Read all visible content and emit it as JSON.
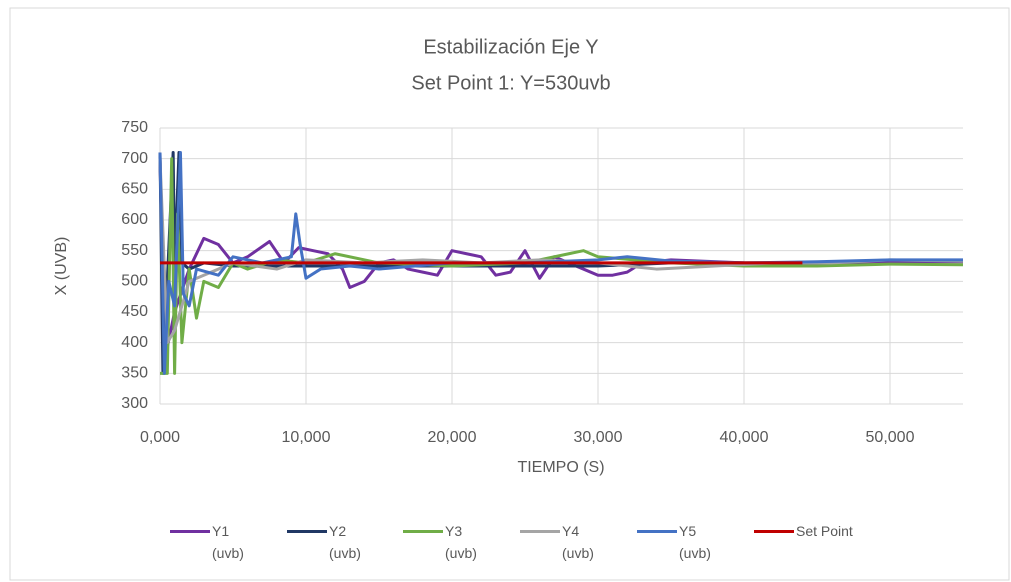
{
  "chart_data": {
    "type": "line",
    "title": "Estabilización Eje Y",
    "subtitle": "Set Point 1: Y=530uvb",
    "x_label": "TIEMPO (S)",
    "y_label": "X (UVB)",
    "xlim": [
      0,
      55
    ],
    "ylim": [
      300,
      750
    ],
    "xticks": [
      {
        "value": 0,
        "label": "0,000"
      },
      {
        "value": 10,
        "label": "10,000"
      },
      {
        "value": 20,
        "label": "20,000"
      },
      {
        "value": 30,
        "label": "30,000"
      },
      {
        "value": 40,
        "label": "40,000"
      },
      {
        "value": 50,
        "label": "50,000"
      }
    ],
    "yticks": [
      300,
      350,
      400,
      450,
      500,
      550,
      600,
      650,
      700,
      750
    ],
    "grid": true,
    "legend": "bottom",
    "series": [
      {
        "name": "Y1 (uvb)",
        "color": "#7030a0",
        "x": [
          0,
          0.3,
          1,
          2,
          3,
          4,
          5,
          6,
          7.5,
          8.5,
          9.5,
          10.5,
          11.5,
          12.5,
          13,
          14,
          15,
          16,
          17,
          18,
          19,
          20,
          21,
          22,
          23,
          24,
          25,
          26,
          27,
          28,
          29,
          30,
          31,
          32,
          33,
          35,
          40,
          45,
          50,
          55
        ],
        "values": [
          700,
          370,
          450,
          520,
          570,
          560,
          530,
          540,
          565,
          530,
          555,
          550,
          545,
          520,
          490,
          500,
          530,
          535,
          520,
          515,
          510,
          550,
          545,
          540,
          510,
          515,
          550,
          505,
          540,
          530,
          520,
          510,
          510,
          515,
          530,
          535,
          530,
          528,
          532,
          532
        ]
      },
      {
        "name": "Y2 (uvb)",
        "color": "#203864",
        "x": [
          0,
          0.2,
          0.5,
          0.9,
          1,
          1.3,
          1.5,
          2,
          3,
          5,
          10,
          15,
          20,
          25,
          30,
          35,
          40,
          44
        ],
        "values": [
          710,
          350,
          500,
          710,
          520,
          710,
          530,
          520,
          530,
          525,
          525,
          525,
          525,
          525,
          525,
          530,
          530,
          530
        ]
      },
      {
        "name": "Y3 (uvb)",
        "color": "#70ad47",
        "x": [
          0,
          0.5,
          0.8,
          1,
          1.2,
          1.5,
          2,
          2.5,
          3,
          4,
          5,
          6,
          8,
          10,
          12,
          15,
          20,
          25,
          28,
          29,
          30,
          35,
          40,
          45,
          50,
          55
        ],
        "values": [
          350,
          350,
          700,
          350,
          610,
          400,
          520,
          440,
          500,
          490,
          530,
          520,
          535,
          530,
          545,
          530,
          525,
          530,
          545,
          550,
          540,
          530,
          525,
          525,
          528,
          527
        ]
      },
      {
        "name": "Y4 (uvb)",
        "color": "#a5a5a5",
        "x": [
          0,
          0.5,
          1,
          1.5,
          2,
          3,
          5,
          8,
          10,
          14,
          18,
          22,
          26,
          30,
          34,
          38,
          42,
          46,
          50,
          55
        ],
        "values": [
          700,
          400,
          420,
          460,
          500,
          510,
          530,
          520,
          535,
          530,
          535,
          530,
          535,
          530,
          520,
          525,
          530,
          530,
          535,
          533
        ]
      },
      {
        "name": "Y5 (uvb)",
        "color": "#4472c4",
        "x": [
          0,
          0.3,
          0.6,
          1,
          1.4,
          1.6,
          2,
          2.5,
          4,
          5,
          7,
          9,
          9.3,
          9.6,
          10,
          11,
          13,
          15,
          20,
          25,
          30,
          32,
          35,
          40,
          45,
          50,
          55
        ],
        "values": [
          710,
          350,
          500,
          460,
          710,
          480,
          460,
          520,
          510,
          540,
          530,
          540,
          610,
          560,
          505,
          520,
          525,
          520,
          530,
          530,
          535,
          540,
          533,
          530,
          532,
          535,
          535
        ]
      },
      {
        "name": "Set Point",
        "color": "#c00000",
        "x": [
          0,
          44
        ],
        "values": [
          530,
          530
        ]
      }
    ]
  }
}
